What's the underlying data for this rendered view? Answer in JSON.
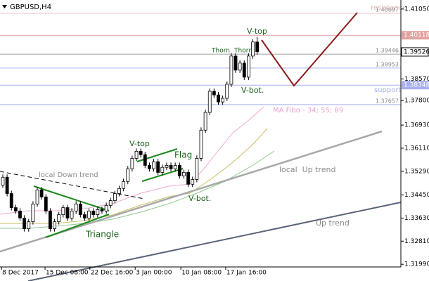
{
  "chart_data": {
    "type": "candlestick",
    "title": "GBPUSD,H4",
    "x": [
      0,
      1,
      2,
      3,
      4,
      5,
      6,
      7,
      8,
      9,
      10,
      11,
      12,
      13,
      14,
      15,
      16,
      17,
      18,
      19,
      20,
      21,
      22,
      23,
      24,
      25,
      26,
      27,
      28,
      29,
      30,
      31,
      32,
      33,
      34,
      35,
      36,
      37,
      38,
      39,
      40,
      41,
      42,
      43,
      44,
      45,
      46,
      47,
      48,
      49,
      50,
      51,
      52,
      53,
      54,
      55,
      56,
      57,
      58,
      59
    ],
    "open": [
      1.348,
      1.3508,
      1.345,
      1.34,
      1.3388,
      1.3363,
      1.3325,
      1.335,
      1.3413,
      1.3463,
      1.3438,
      1.3388,
      1.3325,
      1.335,
      1.3375,
      1.34,
      1.3363,
      1.3388,
      1.3413,
      1.3375,
      1.3363,
      1.3388,
      1.3375,
      1.3393,
      1.3388,
      1.3408,
      1.3425,
      1.345,
      1.3468,
      1.3493,
      1.3538,
      1.3575,
      1.36,
      1.3588,
      1.355,
      1.3538,
      1.3563,
      1.3525,
      1.3543,
      1.355,
      1.3538,
      1.355,
      1.3513,
      1.3525,
      1.3483,
      1.35,
      1.3575,
      1.3675,
      1.3738,
      1.3813,
      1.38,
      1.3775,
      1.3788,
      1.3838,
      1.3938,
      1.3888,
      1.3913,
      1.3863,
      1.3938,
      1.3988
    ],
    "high": [
      1.3518,
      1.3518,
      1.346,
      1.341,
      1.3398,
      1.3373,
      1.336,
      1.3423,
      1.3473,
      1.3473,
      1.3448,
      1.3398,
      1.336,
      1.3385,
      1.341,
      1.341,
      1.3398,
      1.3423,
      1.3423,
      1.3385,
      1.3398,
      1.3398,
      1.3403,
      1.3403,
      1.3418,
      1.3435,
      1.346,
      1.3478,
      1.3503,
      1.3548,
      1.3585,
      1.361,
      1.361,
      1.3598,
      1.356,
      1.3573,
      1.3573,
      1.3553,
      1.356,
      1.356,
      1.356,
      1.356,
      1.3535,
      1.3535,
      1.351,
      1.3585,
      1.3685,
      1.3748,
      1.3823,
      1.3823,
      1.381,
      1.3798,
      1.3848,
      1.3948,
      1.3948,
      1.3923,
      1.3923,
      1.3948,
      1.3998,
      1.4005
    ],
    "low": [
      1.347,
      1.344,
      1.339,
      1.3378,
      1.3353,
      1.3315,
      1.3315,
      1.334,
      1.3403,
      1.3428,
      1.3378,
      1.3315,
      1.3315,
      1.334,
      1.3365,
      1.3353,
      1.3353,
      1.3378,
      1.3365,
      1.3353,
      1.3353,
      1.3365,
      1.3365,
      1.3378,
      1.3378,
      1.3398,
      1.3415,
      1.344,
      1.3458,
      1.3483,
      1.3528,
      1.3565,
      1.3578,
      1.354,
      1.3528,
      1.3528,
      1.3515,
      1.3515,
      1.3533,
      1.3528,
      1.3528,
      1.3503,
      1.3503,
      1.3473,
      1.3473,
      1.349,
      1.3565,
      1.3665,
      1.3728,
      1.379,
      1.3765,
      1.3765,
      1.3778,
      1.3828,
      1.3878,
      1.3878,
      1.3853,
      1.3853,
      1.3928,
      1.3943
    ],
    "close": [
      1.3508,
      1.345,
      1.34,
      1.3388,
      1.3363,
      1.3325,
      1.335,
      1.3413,
      1.3463,
      1.3438,
      1.3388,
      1.3325,
      1.335,
      1.3375,
      1.34,
      1.3363,
      1.3388,
      1.3413,
      1.3375,
      1.3363,
      1.3388,
      1.3375,
      1.3393,
      1.3388,
      1.3408,
      1.3425,
      1.345,
      1.3468,
      1.3493,
      1.3538,
      1.3575,
      1.36,
      1.3588,
      1.355,
      1.3538,
      1.3563,
      1.3525,
      1.3543,
      1.355,
      1.3538,
      1.355,
      1.3513,
      1.3525,
      1.3483,
      1.35,
      1.3575,
      1.3675,
      1.3738,
      1.3813,
      1.38,
      1.3775,
      1.3788,
      1.3838,
      1.3938,
      1.3888,
      1.3913,
      1.3863,
      1.3938,
      1.3988,
      1.3953
    ],
    "xlim": [
      -0.65,
      92.33
    ],
    "xticks": [
      {
        "value": -0.3,
        "label": "8 Dec 2017"
      },
      {
        "value": 9.8,
        "label": "15 Dec 08:00"
      },
      {
        "value": 20.2,
        "label": "22 Dec 16:00"
      },
      {
        "value": 30.7,
        "label": "3 Jan 00:00"
      },
      {
        "value": 41.3,
        "label": "10 Jan 08:00"
      },
      {
        "value": 51.7,
        "label": "17 Jan 16:00"
      }
    ],
    "ylim": [
      1.3177,
      1.4137
    ],
    "yticks": [
      {
        "value": 1.4105,
        "label": "1.41050"
      },
      {
        "value": 1.3857,
        "label": "1.38570"
      },
      {
        "value": 1.378,
        "label": "1.37800"
      },
      {
        "value": 1.3693,
        "label": "1.36930"
      },
      {
        "value": 1.3611,
        "label": "1.36110"
      },
      {
        "value": 1.3529,
        "label": "1.35290"
      },
      {
        "value": 1.3445,
        "label": "1.34450"
      },
      {
        "value": 1.3363,
        "label": "1.33630"
      },
      {
        "value": 1.3281,
        "label": "1.32810"
      },
      {
        "value": 1.3199,
        "label": "1.31990"
      }
    ],
    "levels": [
      {
        "value": 1.40897,
        "color": "#e8c4c4",
        "style": "label"
      },
      {
        "value": 1.40118,
        "color": "#e4a0a0",
        "style": "box"
      },
      {
        "value": 1.39446,
        "color": "#a0a0a0",
        "style": "label"
      },
      {
        "value": 1.38953,
        "color": "#a8b0f0",
        "style": "label"
      },
      {
        "value": 1.38348,
        "color": "#a8b0f0",
        "style": "box"
      },
      {
        "value": 1.37657,
        "color": "#a8b0f0",
        "style": "label"
      }
    ],
    "last_price": 1.39526,
    "annotations": [
      "resistance",
      "support",
      "V-top",
      "Thorn",
      "Thorn",
      "V-bot.",
      "MA Fibo - 34; 55; 89",
      "V-top",
      "Flag",
      "local Down trend",
      "local  Up trend",
      "V-bot.",
      "Triangle",
      "Up trend"
    ]
  }
}
